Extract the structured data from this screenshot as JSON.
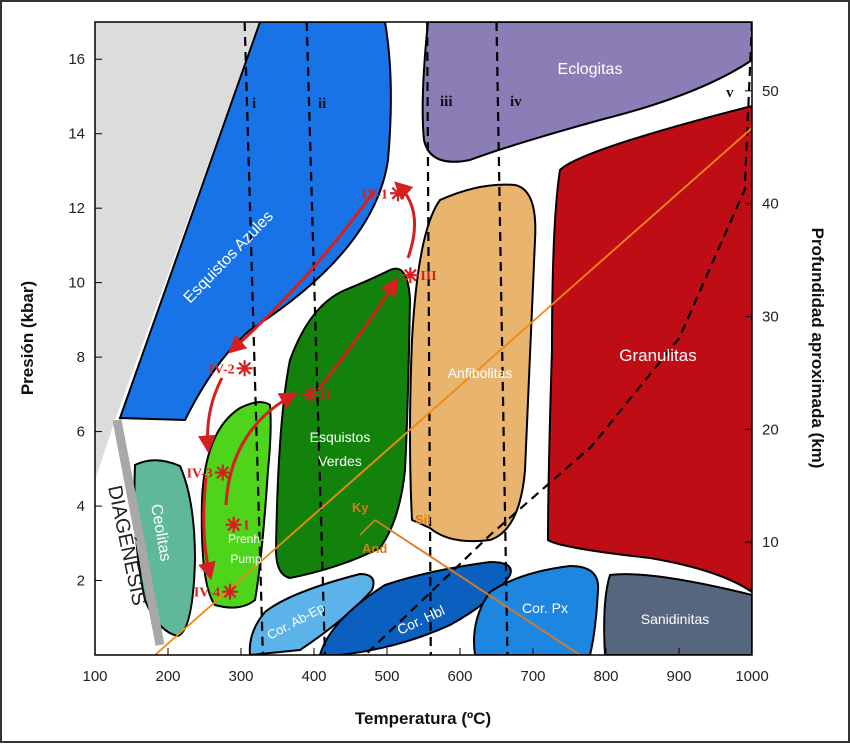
{
  "chart_data": {
    "type": "area",
    "xlabel": "Temperatura (ºC)",
    "ylabel": "Presión (kbar)",
    "y2label": "Profundidad aproximada (km)",
    "xlim": [
      100,
      1000
    ],
    "ylim": [
      0,
      17
    ],
    "x_ticks": [
      "100",
      "200",
      "300",
      "400",
      "500",
      "600",
      "700",
      "800",
      "900",
      "1000"
    ],
    "y_ticks": [
      "2",
      "4",
      "6",
      "8",
      "10",
      "12",
      "14",
      "16"
    ],
    "y2_ticks": [
      "10",
      "20",
      "30",
      "40",
      "50"
    ],
    "facies": [
      {
        "name": "Esquistos Azules",
        "color": "#1874e6"
      },
      {
        "name": "Eclogitas",
        "color": "#8b7db5"
      },
      {
        "name": "Granulitas",
        "color": "#bf0d16"
      },
      {
        "name": "Anfibolitas",
        "color": "#e8b46e"
      },
      {
        "name": "Esquistos Verdes",
        "color": "#12820c"
      },
      {
        "name": "Prenh-Pump",
        "color": "#4ed41a"
      },
      {
        "name": "Ceolitas",
        "color": "#5fb89a"
      },
      {
        "name": "Cor. Ab-Ep",
        "color": "#5bb3ea"
      },
      {
        "name": "Cor. Hbl",
        "color": "#0b5fbf"
      },
      {
        "name": "Cor. Px",
        "color": "#1d86e0"
      },
      {
        "name": "Sanidinitas",
        "color": "#56667e"
      }
    ],
    "diagenesis_label": "DIAGÉNESIS",
    "series": [
      {
        "name": "i",
        "points": [
          [
            305,
            17
          ],
          [
            330,
            0
          ]
        ]
      },
      {
        "name": "ii",
        "points": [
          [
            390,
            17
          ],
          [
            415,
            0
          ]
        ]
      },
      {
        "name": "iii",
        "points": [
          [
            555,
            17
          ],
          [
            560,
            0
          ]
        ]
      },
      {
        "name": "iv",
        "points": [
          [
            650,
            17
          ],
          [
            665,
            0
          ]
        ]
      },
      {
        "name": "v",
        "points": [
          [
            1000,
            17
          ],
          [
            990,
            12.5
          ],
          [
            900,
            8.5
          ],
          [
            780,
            5.6
          ],
          [
            640,
            3.2
          ],
          [
            550,
            1.5
          ],
          [
            470,
            0
          ]
        ]
      }
    ],
    "pt_points": [
      {
        "label": "IV-1",
        "x": 515,
        "y": 12.4
      },
      {
        "label": "IV-2",
        "x": 305,
        "y": 7.7
      },
      {
        "label": "IV-3",
        "x": 275,
        "y": 4.9
      },
      {
        "label": "IV-4",
        "x": 285,
        "y": 1.7
      },
      {
        "label": "I",
        "x": 290,
        "y": 3.5
      },
      {
        "label": "II",
        "x": 395,
        "y": 7.0
      },
      {
        "label": "III",
        "x": 532,
        "y": 10.2
      }
    ],
    "alumino_silicates": [
      "Ky",
      "Sil",
      "And"
    ]
  }
}
